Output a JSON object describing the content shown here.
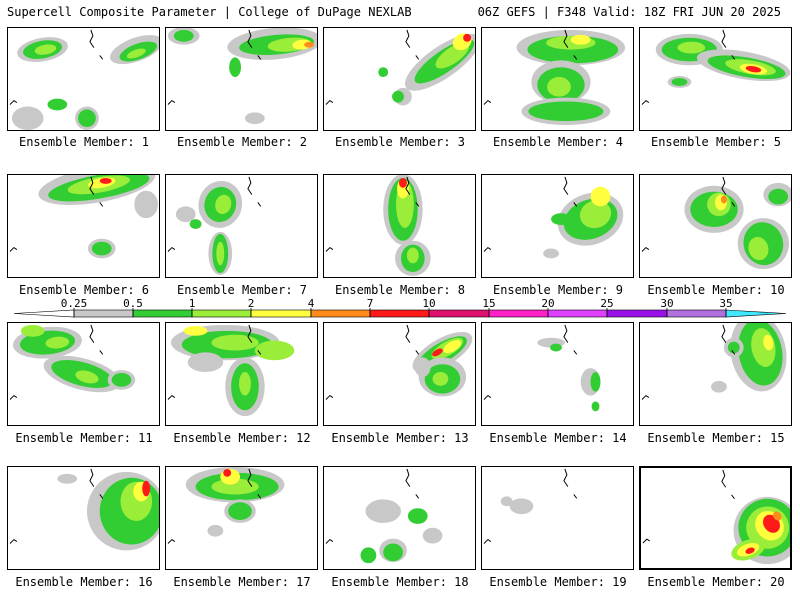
{
  "header": {
    "left": "Supercell Composite Parameter | College of DuPage NEXLAB",
    "right": "06Z GEFS | F348 Valid: 18Z FRI JUN 20 2025"
  },
  "members": [
    {
      "label": "Ensemble Member: 1",
      "selected": false
    },
    {
      "label": "Ensemble Member: 2",
      "selected": false
    },
    {
      "label": "Ensemble Member: 3",
      "selected": false
    },
    {
      "label": "Ensemble Member: 4",
      "selected": false
    },
    {
      "label": "Ensemble Member: 5",
      "selected": false
    },
    {
      "label": "Ensemble Member: 6",
      "selected": false
    },
    {
      "label": "Ensemble Member: 7",
      "selected": false
    },
    {
      "label": "Ensemble Member: 8",
      "selected": false
    },
    {
      "label": "Ensemble Member: 9",
      "selected": false
    },
    {
      "label": "Ensemble Member: 10",
      "selected": false
    },
    {
      "label": "Ensemble Member: 11",
      "selected": false
    },
    {
      "label": "Ensemble Member: 12",
      "selected": false
    },
    {
      "label": "Ensemble Member: 13",
      "selected": false
    },
    {
      "label": "Ensemble Member: 14",
      "selected": false
    },
    {
      "label": "Ensemble Member: 15",
      "selected": false
    },
    {
      "label": "Ensemble Member: 16",
      "selected": false
    },
    {
      "label": "Ensemble Member: 17",
      "selected": false
    },
    {
      "label": "Ensemble Member: 18",
      "selected": false
    },
    {
      "label": "Ensemble Member: 19",
      "selected": false
    },
    {
      "label": "Ensemble Member: 20",
      "selected": true
    }
  ],
  "colorbar": {
    "ticks": [
      "0.25",
      "0.5",
      "1",
      "2",
      "4",
      "7",
      "10",
      "15",
      "20",
      "25",
      "30",
      "35"
    ],
    "colors": [
      "#c8c8c8",
      "#32cd32",
      "#9aee3a",
      "#ffff40",
      "#ff8c1a",
      "#ff1a1a",
      "#e0106e",
      "#ff20c8",
      "#e040ff",
      "#9a10e8",
      "#b070e0",
      "#40e8ff"
    ]
  },
  "fill_colors": {
    "gray": "#c8c8c8",
    "green": "#32cd32",
    "light_green": "#9aee3a",
    "yellow": "#ffff40",
    "orange": "#ff8c1a",
    "red": "#ff1a1a"
  }
}
